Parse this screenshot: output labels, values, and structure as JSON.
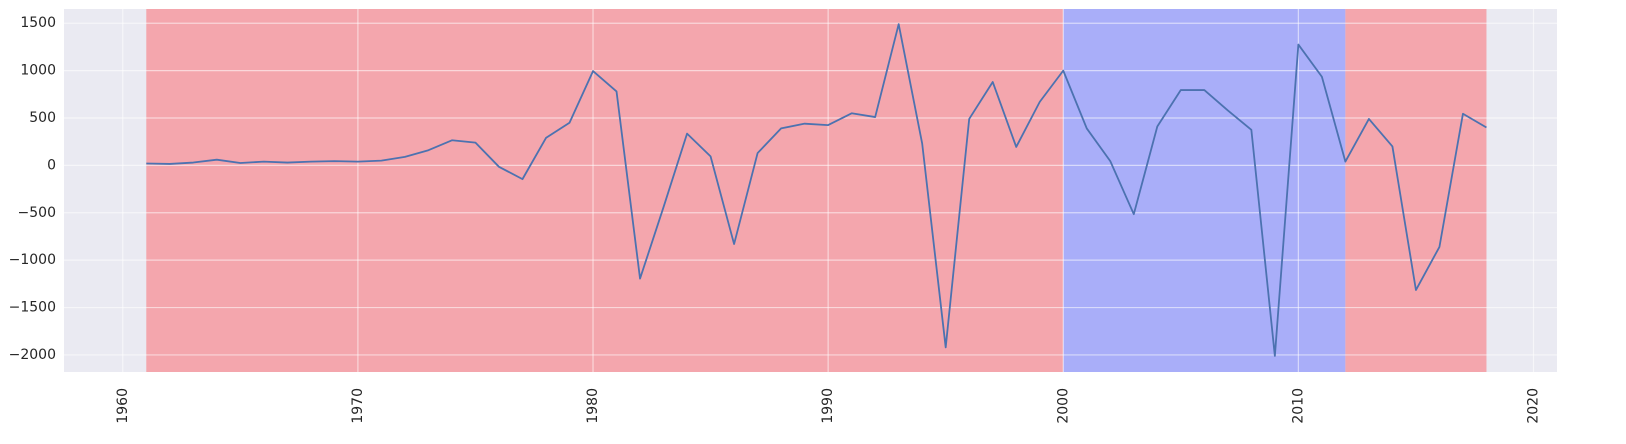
{
  "chart_data": {
    "type": "line",
    "title": "",
    "xlabel": "",
    "ylabel": "",
    "xlim": [
      1957.5,
      2021.0
    ],
    "ylim": [
      -2180,
      1650
    ],
    "grid": true,
    "x_ticks": [
      1960,
      1970,
      1980,
      1990,
      2000,
      2010,
      2020
    ],
    "y_ticks": [
      1500,
      1000,
      500,
      0,
      -500,
      -1000,
      -1500,
      -2000
    ],
    "x_tick_labels": [
      "1960",
      "1970",
      "1980",
      "1990",
      "2000",
      "2010",
      "2020"
    ],
    "y_tick_labels": [
      "1500",
      "1000",
      "500",
      "0",
      "−500",
      "−1000",
      "−1500",
      "−2000"
    ],
    "shaded_regions": [
      {
        "x_start": 1961,
        "x_end": 2000,
        "color": "#f4a6ad"
      },
      {
        "x_start": 2000,
        "x_end": 2012,
        "color": "#a9aef9"
      },
      {
        "x_start": 2012,
        "x_end": 2018,
        "color": "#f4a6ad"
      }
    ],
    "colors": {
      "plot_background": "#eaeaf2",
      "grid": "#ffffff",
      "line": "#4c72b0"
    },
    "series": [
      {
        "x": [
          1961,
          1962,
          1963,
          1964,
          1965,
          1966,
          1967,
          1968,
          1969,
          1970,
          1971,
          1972,
          1973,
          1974,
          1975,
          1976,
          1977,
          1978,
          1979,
          1980,
          1981,
          1982,
          1983,
          1984,
          1985,
          1986,
          1987,
          1988,
          1989,
          1990,
          1991,
          1992,
          1993,
          1994,
          1995,
          1996,
          1997,
          1998,
          1999,
          2000,
          2001,
          2002,
          2003,
          2004,
          2005,
          2006,
          2007,
          2008,
          2009,
          2010,
          2011,
          2012,
          2013,
          2014,
          2015,
          2016,
          2017,
          2018
        ],
        "values": [
          20,
          15,
          30,
          60,
          25,
          40,
          30,
          40,
          45,
          40,
          50,
          90,
          160,
          265,
          240,
          -15,
          -145,
          290,
          450,
          995,
          780,
          -1195,
          -440,
          335,
          95,
          -830,
          130,
          390,
          440,
          425,
          550,
          510,
          1490,
          230,
          -1920,
          490,
          880,
          195,
          670,
          1000,
          390,
          45,
          -515,
          410,
          795,
          795,
          580,
          375,
          -2010,
          1275,
          935,
          40,
          490,
          200,
          -1315,
          -860,
          545,
          400
        ]
      }
    ]
  }
}
